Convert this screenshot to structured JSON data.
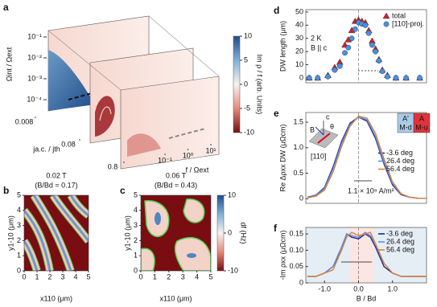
{
  "chart_data": [
    {
      "type": "surface",
      "panel": "a",
      "ylabel": "Ωint / Ωext",
      "log": true,
      "ylim": [
        1e-05,
        1
      ],
      "yticks": [
        {
          "value": 0.1,
          "label": "10⁻¹"
        },
        {
          "value": 0.01,
          "label": "10⁻²"
        },
        {
          "value": 0.001,
          "label": "10⁻³"
        },
        {
          "value": 0.0001,
          "label": "10⁻⁴"
        }
      ],
      "jlabel": "ja.c. / jth",
      "jlim": [
        0.008,
        0.8
      ],
      "jticks": [
        0.008,
        0.08,
        0.8
      ],
      "xlabel": "f / Ωext",
      "xlim": [
        0.1,
        10
      ],
      "xticks": [
        {
          "value": 0.1,
          "label": "10⁻¹"
        },
        {
          "value": 1,
          "label": "10⁰"
        },
        {
          "value": 10,
          "label": "10¹"
        }
      ],
      "colorbar": {
        "label": "Im ρ / f (arb. Units)",
        "lim": [
          -10,
          10
        ],
        "ticks": [
          10,
          5,
          0,
          -5,
          -10
        ]
      }
    },
    {
      "type": "map",
      "panel": "b",
      "title": "0.02 T",
      "subtitle": "(B/Bd = 0.17)",
      "xlabel": "x110 (μm)",
      "ylabel": "y1-10 (μm)",
      "xlim": [
        0,
        5
      ],
      "ylim": [
        0,
        5
      ],
      "xticks": [
        0,
        1,
        2,
        3,
        4,
        5
      ],
      "yticks": [
        0,
        1,
        2,
        3,
        4,
        5
      ]
    },
    {
      "type": "map",
      "panel": "c",
      "title": "0.06 T",
      "subtitle": "(B/Bd = 0.43)",
      "xlabel": "x110 (μm)",
      "ylabel": "y1-10 (μm)",
      "xlim": [
        0,
        5
      ],
      "ylim": [
        0,
        5
      ],
      "xticks": [
        0,
        1,
        2,
        3,
        4,
        5
      ],
      "yticks": [
        0,
        1,
        2,
        3,
        4,
        5
      ],
      "colorbar": {
        "label": "df (Hz)",
        "lim": [
          -10,
          10
        ],
        "ticks": [
          10,
          0,
          -10
        ]
      }
    },
    {
      "type": "scatter",
      "panel": "d",
      "ylabel": "DW length (μm)",
      "annotations": [
        "2 K",
        "B || c"
      ],
      "legend": "upper right",
      "xlim": [
        -1.55,
        2.0
      ],
      "ylim": [
        -3.7,
        51.8
      ],
      "yticks": [
        0,
        10,
        20,
        30,
        40,
        50
      ],
      "x": [
        -1.45,
        -1.2,
        -0.9,
        -0.7,
        -0.55,
        -0.4,
        -0.3,
        -0.2,
        -0.1,
        0,
        0.1,
        0.2,
        0.3,
        0.4,
        0.5,
        0.6,
        0.7,
        0.85,
        1.1,
        1.4,
        1.8
      ],
      "series": [
        {
          "name": "total",
          "color": "#c8242b",
          "values": [
            0,
            0,
            2,
            8,
            12,
            25,
            29,
            36,
            43,
            44,
            43,
            42,
            36,
            28,
            22,
            14,
            6,
            2,
            0,
            0,
            0
          ]
        },
        {
          "name": "[110]-proj.",
          "color": "#4a8fe0",
          "values": [
            0,
            0,
            1,
            6,
            9,
            19,
            23,
            30,
            37,
            42,
            41,
            40,
            34,
            25,
            20,
            13,
            5,
            1,
            0,
            0,
            0
          ]
        }
      ]
    },
    {
      "type": "line",
      "panel": "e",
      "ylabel": "Re Δρxx DW (μΩcm)",
      "legend": "right",
      "annotations": [
        "1.1 × 10⁸ A/m²",
        "[110]",
        "B",
        "c",
        "θ"
      ],
      "boxes": [
        {
          "top": "A'",
          "bottom": "M-d",
          "color": "#a9cbe6"
        },
        {
          "top": "A",
          "bottom": "M-u",
          "color": "#e0323a"
        }
      ],
      "xlim": [
        -1.55,
        2.0
      ],
      "ylim": [
        -0.09,
        1.69
      ],
      "yticks": [
        0,
        0.5,
        {
          "value": 1,
          "label": "1.0"
        },
        1.5
      ],
      "x": [
        -1.5,
        -1.25,
        -1,
        -0.75,
        -0.5,
        -0.25,
        0,
        0.25,
        0.5,
        0.75,
        1,
        1.25,
        1.5,
        1.75,
        2
      ],
      "series": [
        {
          "name": "-3.6 deg",
          "color": "#1c2a8c",
          "values": [
            0.03,
            0.07,
            0.22,
            0.62,
            1.12,
            1.48,
            1.6,
            1.52,
            1.18,
            0.68,
            0.27,
            0.08,
            0.03,
            0.01,
            0.01
          ]
        },
        {
          "name": "26.4 deg",
          "color": "#5b8fe6",
          "values": [
            0.02,
            0.06,
            0.2,
            0.58,
            1.08,
            1.45,
            1.6,
            1.55,
            1.22,
            0.72,
            0.3,
            0.09,
            0.03,
            0.01,
            0.01
          ]
        },
        {
          "name": "56.4 deg",
          "color": "#d9843a",
          "values": [
            0.02,
            0.05,
            0.17,
            0.52,
            1.02,
            1.42,
            1.62,
            1.58,
            1.28,
            0.78,
            0.33,
            0.1,
            0.03,
            0.01,
            0.01
          ]
        }
      ]
    },
    {
      "type": "line",
      "panel": "f",
      "ylabel": "-Im ρxx (μΩcm)",
      "xlabel": "B / Bd",
      "legend": "upper right",
      "xlim": [
        -1.55,
        2.0
      ],
      "ylim": [
        0,
        0.17
      ],
      "xticks": [
        {
          "value": -1,
          "label": "-1.0"
        },
        {
          "value": 0,
          "label": "0.0"
        },
        {
          "value": 1,
          "label": "1.0"
        }
      ],
      "yticks": [
        0,
        0.05,
        {
          "value": 0.1,
          "label": "0.10"
        },
        0.15
      ],
      "x": [
        -1.5,
        -1.25,
        -1,
        -0.75,
        -0.5,
        -0.35,
        -0.2,
        0,
        0.2,
        0.35,
        0.5,
        0.75,
        1,
        1.25,
        1.5,
        1.75,
        2
      ],
      "series": [
        {
          "name": "-3.6 deg",
          "color": "#1c2a8c",
          "values": [
            0.02,
            0.02,
            0.03,
            0.05,
            0.1,
            0.15,
            0.14,
            0.135,
            0.15,
            0.14,
            0.11,
            0.05,
            0.03,
            0.02,
            0.02,
            0.02,
            0.02
          ]
        },
        {
          "name": "26.4 deg",
          "color": "#5b8fe6",
          "values": [
            0.02,
            0.02,
            0.03,
            0.05,
            0.11,
            0.15,
            0.145,
            0.14,
            0.155,
            0.145,
            0.12,
            0.06,
            0.03,
            0.02,
            0.02,
            0.02,
            0.02
          ]
        },
        {
          "name": "56.4 deg",
          "color": "#d9843a",
          "values": [
            0.02,
            0.02,
            0.03,
            0.04,
            0.1,
            0.14,
            0.155,
            0.145,
            0.15,
            0.155,
            0.12,
            0.06,
            0.03,
            0.02,
            0.02,
            0.02,
            0.02
          ]
        }
      ]
    }
  ]
}
